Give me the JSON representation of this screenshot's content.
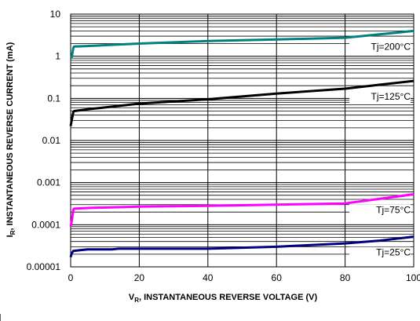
{
  "chart_data": {
    "type": "line",
    "xlabel_main": "V",
    "xlabel_sub": "R",
    "xlabel_rest": ", INSTANTANEOUS REVERSE VOLTAGE (V)",
    "ylabel_main": "I",
    "ylabel_sub": "R",
    "ylabel_rest": ", INSTANTANEOUS REVERSE CURRENT (mA)",
    "xlim": [
      0,
      100
    ],
    "ylim": [
      1e-05,
      10
    ],
    "yscale": "log",
    "grid": true,
    "x_ticks": [
      {
        "value": 0,
        "label": "0"
      },
      {
        "value": 20,
        "label": "20"
      },
      {
        "value": 40,
        "label": "40"
      },
      {
        "value": 60,
        "label": "60"
      },
      {
        "value": 80,
        "label": "80"
      },
      {
        "value": 100,
        "label": "100"
      }
    ],
    "y_ticks": [
      {
        "value": 10,
        "label": "10"
      },
      {
        "value": 1,
        "label": "1"
      },
      {
        "value": 0.1,
        "label": "0.1"
      },
      {
        "value": 0.01,
        "label": "0.01"
      },
      {
        "value": 0.001,
        "label": "0.001"
      },
      {
        "value": 0.0001,
        "label": "0.0001"
      },
      {
        "value": 1e-05,
        "label": "0.00001"
      }
    ],
    "series": [
      {
        "name": "Tj=200°C",
        "color": "#008080",
        "x": [
          0,
          0.3,
          0.8,
          1,
          5,
          20,
          40,
          60,
          80,
          90,
          100
        ],
        "y": [
          0.9,
          0.95,
          1.6,
          1.7,
          1.75,
          2.0,
          2.3,
          2.5,
          2.75,
          3.3,
          4.0
        ]
      },
      {
        "name": "Tj=125°C",
        "color": "#000000",
        "x": [
          0,
          0.3,
          0.8,
          1,
          5,
          20,
          40,
          60,
          80,
          90,
          100
        ],
        "y": [
          0.022,
          0.03,
          0.048,
          0.05,
          0.055,
          0.075,
          0.095,
          0.13,
          0.17,
          0.21,
          0.26
        ]
      },
      {
        "name": "Tj=75°C",
        "color": "#ff00ff",
        "x": [
          0,
          0.3,
          0.8,
          1,
          5,
          20,
          40,
          60,
          80,
          90,
          100
        ],
        "y": [
          9e-05,
          0.00012,
          0.00023,
          0.00024,
          0.00025,
          0.00027,
          0.00028,
          0.0003,
          0.00032,
          0.00041,
          0.00053
        ]
      },
      {
        "name": "Tj=25°C",
        "color": "#000080",
        "x": [
          0,
          0.3,
          0.8,
          1,
          3,
          5,
          12,
          14,
          40,
          60,
          80,
          90,
          100
        ],
        "y": [
          1.7e-05,
          2.1e-05,
          2.4e-05,
          2.4e-05,
          2.5e-05,
          2.6e-05,
          2.6e-05,
          2.7e-05,
          2.7e-05,
          3e-05,
          3.6e-05,
          4.2e-05,
          5.2e-05
        ]
      }
    ]
  }
}
